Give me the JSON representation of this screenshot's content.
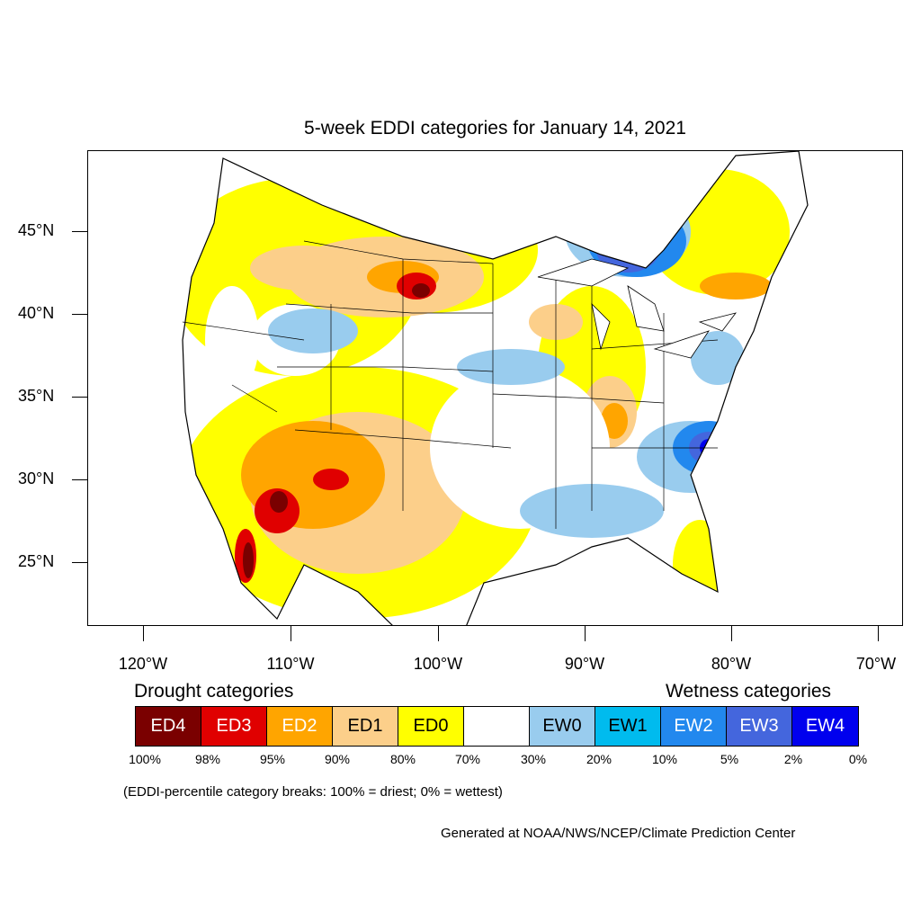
{
  "title": "5-week EDDI categories for January 14, 2021",
  "latitude_labels": [
    "45°N",
    "40°N",
    "35°N",
    "30°N",
    "25°N"
  ],
  "longitude_labels": [
    "120°W",
    "110°W",
    "100°W",
    "90°W",
    "80°W",
    "70°W"
  ],
  "legend": {
    "drought_heading": "Drought categories",
    "wetness_heading": "Wetness categories",
    "categories": [
      {
        "label": "ED4",
        "color": "#7a0000",
        "text_color": "#ffffff"
      },
      {
        "label": "ED3",
        "color": "#e00000",
        "text_color": "#ffffff"
      },
      {
        "label": "ED2",
        "color": "#ffa500",
        "text_color": "#ffffff"
      },
      {
        "label": "ED1",
        "color": "#fccf8a",
        "text_color": "#000000"
      },
      {
        "label": "ED0",
        "color": "#ffff00",
        "text_color": "#000000"
      },
      {
        "label": "",
        "color": "#ffffff",
        "text_color": "#000000"
      },
      {
        "label": "EW0",
        "color": "#99ccee",
        "text_color": "#000000"
      },
      {
        "label": "EW1",
        "color": "#00bbee",
        "text_color": "#000000"
      },
      {
        "label": "EW2",
        "color": "#2288ee",
        "text_color": "#ffffff"
      },
      {
        "label": "EW3",
        "color": "#4466dd",
        "text_color": "#ffffff"
      },
      {
        "label": "EW4",
        "color": "#0000ee",
        "text_color": "#ffffff"
      }
    ],
    "percentile_breaks": [
      "100%",
      "98%",
      "95%",
      "90%",
      "80%",
      "70%",
      "30%",
      "20%",
      "10%",
      "5%",
      "2%",
      "0%"
    ],
    "note": "(EDDI-percentile category breaks: 100% = driest; 0% = wettest)"
  },
  "credit": "Generated at NOAA/NWS/NCEP/Climate Prediction Center"
}
